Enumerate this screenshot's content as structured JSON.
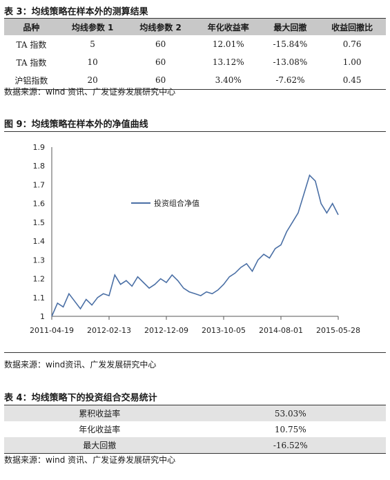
{
  "table3": {
    "caption": "表 3：均线策略在样本外的测算结果",
    "headers": [
      "品种",
      "均线参数 1",
      "均线参数 2",
      "年化收益率",
      "最大回撤",
      "收益回撤比"
    ],
    "rows": [
      [
        "TA 指数",
        "5",
        "60",
        "12.01%",
        "-15.84%",
        "0.76"
      ],
      [
        "TA 指数",
        "10",
        "60",
        "13.12%",
        "-13.08%",
        "1.00"
      ],
      [
        "沪铝指数",
        "20",
        "60",
        "3.40%",
        "-7.62%",
        "0.45"
      ]
    ],
    "source": "数据来源：wind 资讯、广发证券发展研究中心"
  },
  "figure9": {
    "caption": "图 9：均线策略在样本外的净值曲线",
    "source": "数据来源：wind资讯、广发发展研究中心"
  },
  "chart_data": {
    "type": "line",
    "title": "",
    "legend": "top-left",
    "ylim": [
      1,
      1.9
    ],
    "yticks": [
      "1",
      "1.1",
      "1.2",
      "1.3",
      "1.4",
      "1.5",
      "1.6",
      "1.7",
      "1.8",
      "1.9"
    ],
    "xticks": [
      "2011-04-19",
      "2012-02-13",
      "2012-12-09",
      "2013-10-05",
      "2014-08-01",
      "2015-05-28"
    ],
    "color": "#4a6fa5",
    "series": [
      {
        "name": "投资组合净值",
        "x": [
          "2011-04-19",
          "2011-05-19",
          "2011-06-18",
          "2011-07-18",
          "2011-08-17",
          "2011-09-16",
          "2011-10-16",
          "2011-11-15",
          "2011-12-15",
          "2012-01-14",
          "2012-02-13",
          "2012-03-14",
          "2012-04-13",
          "2012-05-13",
          "2012-06-12",
          "2012-07-12",
          "2012-08-11",
          "2012-09-10",
          "2012-10-10",
          "2012-11-09",
          "2012-12-09",
          "2013-01-08",
          "2013-02-07",
          "2013-03-09",
          "2013-04-08",
          "2013-05-08",
          "2013-06-07",
          "2013-07-07",
          "2013-08-06",
          "2013-09-05",
          "2013-10-05",
          "2013-11-04",
          "2013-12-04",
          "2014-01-03",
          "2014-02-02",
          "2014-03-04",
          "2014-04-03",
          "2014-05-03",
          "2014-06-02",
          "2014-07-02",
          "2014-08-01",
          "2014-08-31",
          "2014-09-30",
          "2014-10-30",
          "2014-11-29",
          "2014-12-29",
          "2015-01-28",
          "2015-02-27",
          "2015-03-29",
          "2015-04-28",
          "2015-05-28"
        ],
        "values": [
          1.0,
          1.07,
          1.05,
          1.12,
          1.08,
          1.04,
          1.09,
          1.06,
          1.1,
          1.12,
          1.11,
          1.22,
          1.17,
          1.19,
          1.16,
          1.21,
          1.18,
          1.15,
          1.17,
          1.2,
          1.18,
          1.22,
          1.19,
          1.15,
          1.13,
          1.12,
          1.11,
          1.13,
          1.12,
          1.14,
          1.17,
          1.21,
          1.23,
          1.26,
          1.28,
          1.24,
          1.3,
          1.33,
          1.31,
          1.36,
          1.38,
          1.45,
          1.5,
          1.55,
          1.65,
          1.75,
          1.72,
          1.6,
          1.55,
          1.6,
          1.54
        ]
      }
    ]
  },
  "table4": {
    "caption": "表 4：均线策略下的投资组合交易统计",
    "rows": [
      [
        "累积收益率",
        "53.03%"
      ],
      [
        "年化收益率",
        "10.75%"
      ],
      [
        "最大回撤",
        "-16.52%"
      ]
    ],
    "source": "数据来源：wind 资讯、广发证券发展研究中心"
  }
}
